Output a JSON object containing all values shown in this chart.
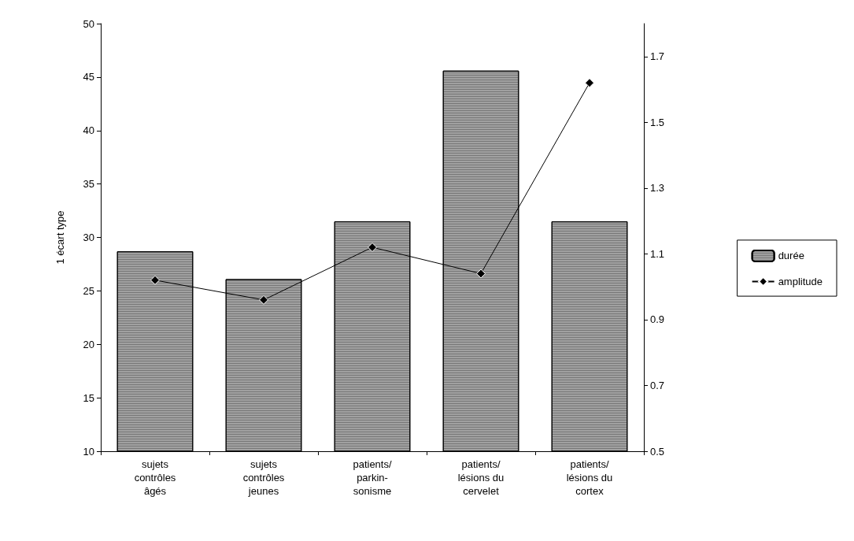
{
  "chart_data": {
    "type": "bar",
    "ylabel": "1 écart type",
    "categories": [
      "sujets\ncontrôles\nâgés",
      "sujets\ncontrôles\njeunes",
      "patients/\nparkin-\nsonisme",
      "patients/\nlésions du\ncervelet",
      "patients/\nlésions du\ncortex"
    ],
    "series": [
      {
        "name": "durée",
        "color": "#a0a0a0",
        "values": [
          28.7,
          26.1,
          31.5,
          45.6,
          31.5
        ]
      },
      {
        "name": "amplitude",
        "type": "line",
        "axis": "y2",
        "color": "#000000",
        "marker": "diamond",
        "line_style": "solid",
        "values": [
          1.02,
          0.96,
          1.12,
          1.04,
          1.62
        ]
      }
    ],
    "ylim": [
      10,
      50
    ],
    "yticks": [
      10,
      15,
      20,
      25,
      30,
      35,
      40,
      45,
      50
    ],
    "y2lim": [
      0.5,
      1.8
    ],
    "y2ticks": [
      0.5,
      0.7,
      0.9,
      1.1,
      1.3,
      1.5,
      1.7
    ],
    "grid": false,
    "legend": "right"
  }
}
